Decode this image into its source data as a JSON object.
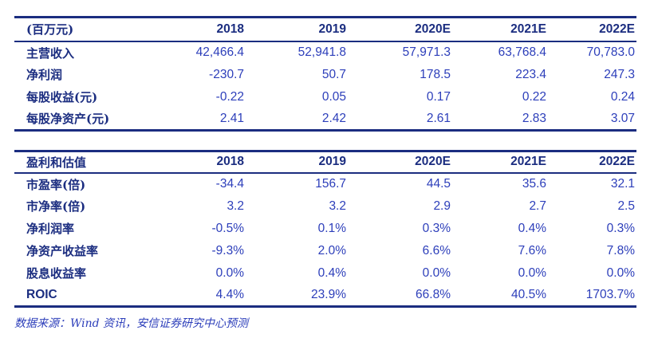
{
  "colors": {
    "navy": "#1b2d80",
    "blue": "#2c3eba",
    "background": "#ffffff"
  },
  "table1": {
    "unit_label": "(百万元)",
    "columns": [
      "2018",
      "2019",
      "2020E",
      "2021E",
      "2022E"
    ],
    "rows": [
      {
        "label": "主营收入",
        "values": [
          "42,466.4",
          "52,941.8",
          "57,971.3",
          "63,768.4",
          "70,783.0"
        ]
      },
      {
        "label": "净利润",
        "values": [
          "-230.7",
          "50.7",
          "178.5",
          "223.4",
          "247.3"
        ]
      },
      {
        "label": "每股收益(元)",
        "values": [
          "-0.22",
          "0.05",
          "0.17",
          "0.22",
          "0.24"
        ]
      },
      {
        "label": "每股净资产(元)",
        "values": [
          "2.41",
          "2.42",
          "2.61",
          "2.83",
          "3.07"
        ]
      }
    ]
  },
  "table2": {
    "header_label": "盈利和估值",
    "columns": [
      "2018",
      "2019",
      "2020E",
      "2021E",
      "2022E"
    ],
    "rows": [
      {
        "label": "市盈率(倍)",
        "values": [
          "-34.4",
          "156.7",
          "44.5",
          "35.6",
          "32.1"
        ]
      },
      {
        "label": "市净率(倍)",
        "values": [
          "3.2",
          "3.2",
          "2.9",
          "2.7",
          "2.5"
        ]
      },
      {
        "label": "净利润率",
        "values": [
          "-0.5%",
          "0.1%",
          "0.3%",
          "0.4%",
          "0.3%"
        ]
      },
      {
        "label": "净资产收益率",
        "values": [
          "-9.3%",
          "2.0%",
          "6.6%",
          "7.6%",
          "7.8%"
        ]
      },
      {
        "label": "股息收益率",
        "values": [
          "0.0%",
          "0.4%",
          "0.0%",
          "0.0%",
          "0.0%"
        ]
      },
      {
        "label": "ROIC",
        "values": [
          "4.4%",
          "23.9%",
          "66.8%",
          "40.5%",
          "1703.7%"
        ]
      }
    ]
  },
  "footer": {
    "source_note": "数据来源：Wind 资讯，安信证券研究中心预测"
  }
}
